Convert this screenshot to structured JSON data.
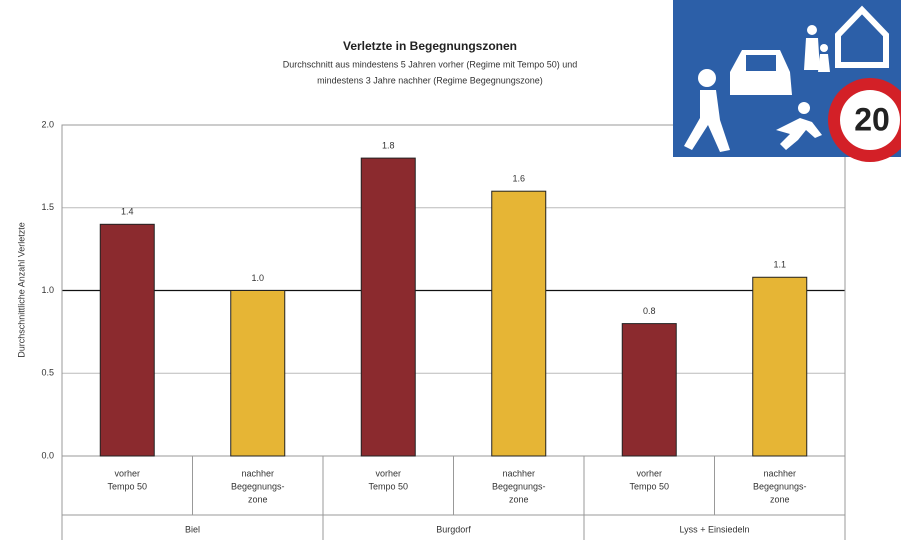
{
  "chart_data": {
    "type": "bar",
    "title": "Verletzte in Begegnungszonen",
    "subtitle": [
      "Durchschnitt aus mindestens 5 Jahren vorher (Regime mit Tempo 50) und",
      "mindestens 3 Jahre nachher (Regime Begegnungszone)"
    ],
    "y_label": "Durchschnittliche Anzahl Verletzte",
    "categories": [
      [
        "vorher",
        "Tempo 50"
      ],
      [
        "nachher",
        "Begegnungs-",
        "zone"
      ],
      [
        "vorher",
        "Tempo 50"
      ],
      [
        "nachher",
        "Begegnungs-",
        "zone"
      ],
      [
        "vorher",
        "Tempo 50"
      ],
      [
        "nachher",
        "Begegnungs-",
        "zone"
      ]
    ],
    "groups": [
      "Biel",
      "Burgdorf",
      "Lyss + Einsiedeln"
    ],
    "values": [
      1.4,
      1.0,
      1.8,
      1.6,
      0.8,
      1.08
    ],
    "value_labels": [
      "1.4",
      "1.0",
      "1.8",
      "1.6",
      "0.8",
      "1.1"
    ],
    "colors": [
      "#8b2a2e",
      "#e6b535",
      "#8b2a2e",
      "#e6b535",
      "#8b2a2e",
      "#e6b535"
    ],
    "ylim": [
      0,
      2
    ],
    "yticks": [
      {
        "value": 0,
        "label": "0.0"
      },
      0.5,
      {
        "value": 1,
        "label": "1.0"
      },
      1.5,
      {
        "value": 2,
        "label": "2.0"
      }
    ],
    "reference_line": 1,
    "grid": true
  },
  "image": {
    "sign_text": "20"
  }
}
